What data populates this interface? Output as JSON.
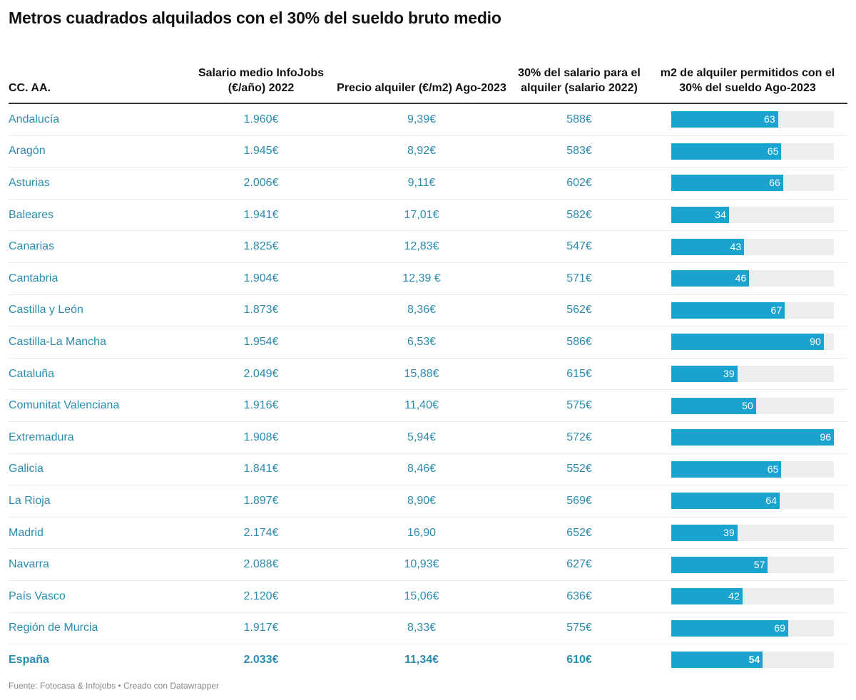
{
  "title": "Metros cuadrados alquilados con el 30% del sueldo bruto medio",
  "columns": [
    "CC. AA.",
    "Salario medio InfoJobs (€/año) 2022",
    "Precio alquiler (€/m2) Ago-2023",
    "30% del salario para el alquiler (salario 2022)",
    "m2 de alquiler permitidos con el 30% del sueldo Ago-2023"
  ],
  "colors": {
    "accent": "#1ba3cf",
    "text": "#2a8db0",
    "track": "#ededed"
  },
  "chart_data": {
    "type": "table",
    "bar_column": "m2 de alquiler permitidos con el 30% del sueldo Ago-2023",
    "bar_max": 96,
    "rows": [
      {
        "region": "Andalucía",
        "salario": "1.960€",
        "precio": "9,39€",
        "treinta": "588€",
        "m2": 63
      },
      {
        "region": "Aragón",
        "salario": "1.945€",
        "precio": "8,92€",
        "treinta": "583€",
        "m2": 65
      },
      {
        "region": "Asturias",
        "salario": "2.006€",
        "precio": "9,11€",
        "treinta": "602€",
        "m2": 66
      },
      {
        "region": "Baleares",
        "salario": "1.941€",
        "precio": "17,01€",
        "treinta": "582€",
        "m2": 34
      },
      {
        "region": "Canarias",
        "salario": "1.825€",
        "precio": "12,83€",
        "treinta": "547€",
        "m2": 43
      },
      {
        "region": "Cantabria",
        "salario": "1.904€",
        "precio": "12,39 €",
        "treinta": "571€",
        "m2": 46
      },
      {
        "region": "Castilla y León",
        "salario": "1.873€",
        "precio": "8,36€",
        "treinta": "562€",
        "m2": 67
      },
      {
        "region": "Castilla-La Mancha",
        "salario": "1.954€",
        "precio": "6,53€",
        "treinta": "586€",
        "m2": 90
      },
      {
        "region": "Cataluña",
        "salario": "2.049€",
        "precio": "15,88€",
        "treinta": "615€",
        "m2": 39
      },
      {
        "region": "Comunitat Valenciana",
        "salario": "1.916€",
        "precio": "11,40€",
        "treinta": "575€",
        "m2": 50
      },
      {
        "region": "Extremadura",
        "salario": "1.908€",
        "precio": "5,94€",
        "treinta": "572€",
        "m2": 96
      },
      {
        "region": "Galicia",
        "salario": "1.841€",
        "precio": "8,46€",
        "treinta": "552€",
        "m2": 65
      },
      {
        "region": "La Rioja",
        "salario": "1.897€",
        "precio": "8,90€",
        "treinta": "569€",
        "m2": 64
      },
      {
        "region": "Madrid",
        "salario": "2.174€",
        "precio": "16,90",
        "treinta": "652€",
        "m2": 39
      },
      {
        "region": "Navarra",
        "salario": "2.088€",
        "precio": "10,93€",
        "treinta": "627€",
        "m2": 57
      },
      {
        "region": "País Vasco",
        "salario": "2.120€",
        "precio": "15,06€",
        "treinta": "636€",
        "m2": 42
      },
      {
        "region": "Región de Murcia",
        "salario": "1.917€",
        "precio": "8,33€",
        "treinta": "575€",
        "m2": 69
      },
      {
        "region": "España",
        "salario": "2.033€",
        "precio": "11,34€",
        "treinta": "610€",
        "m2": 54
      }
    ]
  },
  "footer": "Fuente: Fotocasa & Infojobs • Creado con Datawrapper"
}
